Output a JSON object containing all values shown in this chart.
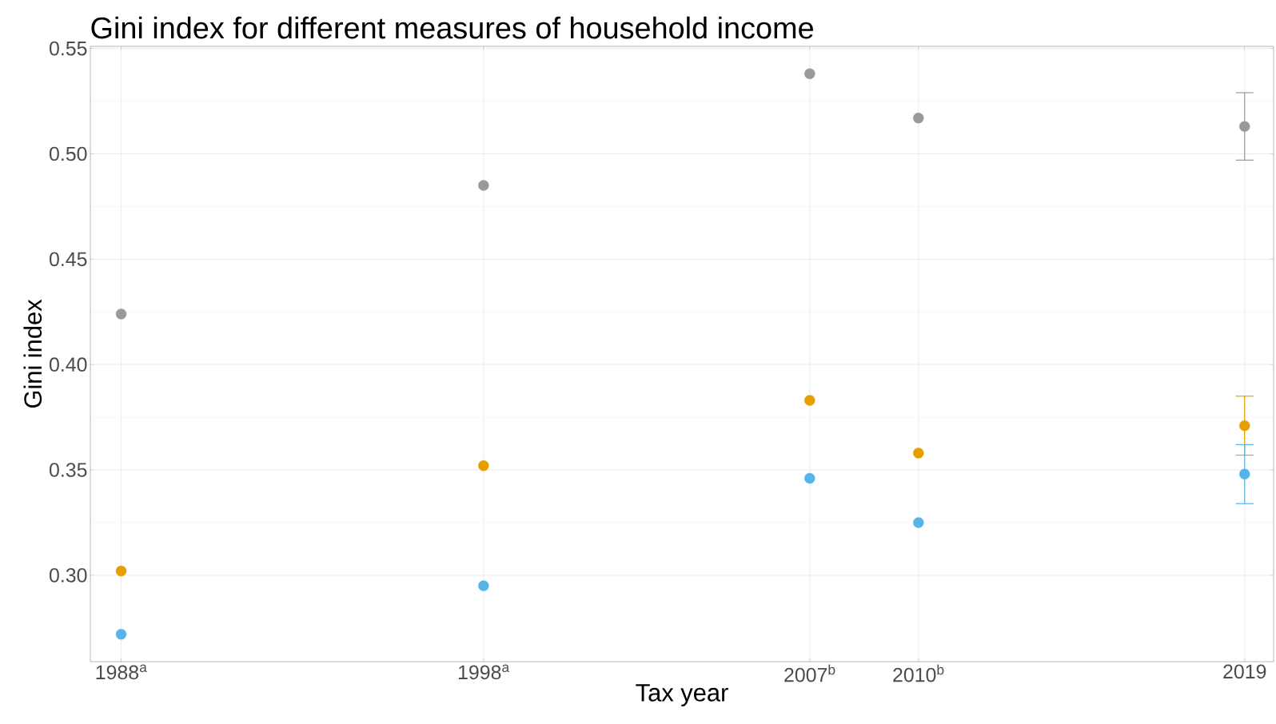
{
  "chart_data": {
    "type": "scatter",
    "title": "Gini index for different measures of household income",
    "xlabel": "Tax year",
    "ylabel": "Gini index",
    "x": [
      1988,
      1998,
      2007,
      2010,
      2019
    ],
    "series": [
      {
        "color": "#999999",
        "values": [
          0.424,
          0.485,
          0.538,
          0.517,
          0.513
        ],
        "errors": [
          null,
          null,
          null,
          null,
          [
            0.497,
            0.529
          ]
        ]
      },
      {
        "color": "#e69f00",
        "values": [
          0.302,
          0.352,
          0.383,
          0.358,
          0.371
        ],
        "errors": [
          null,
          null,
          null,
          null,
          [
            0.357,
            0.385
          ]
        ]
      },
      {
        "color": "#56b4e9",
        "values": [
          0.272,
          0.295,
          0.346,
          0.325,
          0.348
        ],
        "errors": [
          null,
          null,
          null,
          null,
          [
            0.334,
            0.362
          ]
        ]
      }
    ],
    "xlim": [
      1987.15,
      2019.8
    ],
    "ylim": [
      0.259,
      0.551
    ],
    "xticks": [
      {
        "value": 1988,
        "label": "1988$^{a}$"
      },
      {
        "value": 1998,
        "label": "1998$^{a}$"
      },
      {
        "value": 2007,
        "label": "2007$^{b}$"
      },
      {
        "value": 2010,
        "label": "2010$^{b}$"
      },
      2019
    ],
    "yticks": [
      {
        "value": 0.3,
        "label": "0.30"
      },
      0.35,
      {
        "value": 0.4,
        "label": "0.40"
      },
      0.45,
      {
        "value": 0.5,
        "label": "0.50"
      },
      0.55
    ],
    "grid": true,
    "marker": "circle"
  }
}
